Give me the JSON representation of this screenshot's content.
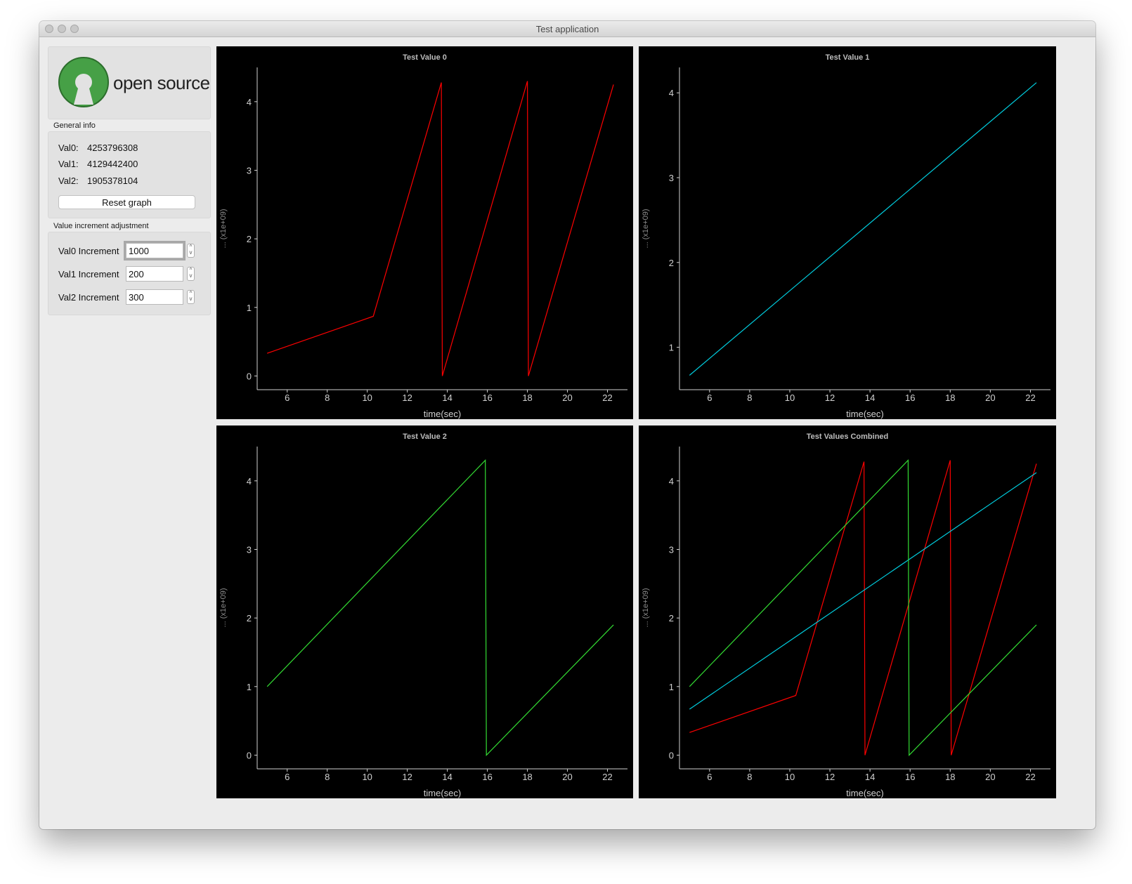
{
  "window": {
    "title": "Test application"
  },
  "sidebar": {
    "logo_text": "open source",
    "general_info": {
      "label": "General info",
      "rows": [
        {
          "label": "Val0:",
          "value": "4253796308"
        },
        {
          "label": "Val1:",
          "value": "4129442400"
        },
        {
          "label": "Val2:",
          "value": "1905378104"
        }
      ],
      "reset_label": "Reset graph"
    },
    "increment": {
      "label": "Value increment adjustment",
      "rows": [
        {
          "label": "Val0 Increment",
          "value": "1000"
        },
        {
          "label": "Val1 Increment",
          "value": "200"
        },
        {
          "label": "Val2 Increment",
          "value": "300"
        }
      ]
    }
  },
  "colors": {
    "val0": "#ff0000",
    "val1": "#00ccdd",
    "val2": "#33dd33",
    "logo_green": "#46a046"
  },
  "chart_data": [
    {
      "type": "line",
      "title": "Test Value 0",
      "xlabel": "time(sec)",
      "ylabel": "... (x1e+09)",
      "xlim": [
        4.5,
        23
      ],
      "ylim": [
        -0.2,
        4.5
      ],
      "xticks": [
        6,
        8,
        10,
        12,
        14,
        16,
        18,
        20,
        22
      ],
      "yticks": [
        0,
        1,
        2,
        3,
        4
      ],
      "series": [
        {
          "color": "#ff0000",
          "x": [
            5,
            10.3,
            13.7,
            13.75,
            18.0,
            18.05,
            22.3
          ],
          "y": [
            0.33,
            0.87,
            4.28,
            0.0,
            4.3,
            0.0,
            4.25
          ]
        }
      ]
    },
    {
      "type": "line",
      "title": "Test Value 1",
      "xlabel": "time(sec)",
      "ylabel": "... (x1e+09)",
      "xlim": [
        4.5,
        23
      ],
      "ylim": [
        0.5,
        4.3
      ],
      "xticks": [
        6,
        8,
        10,
        12,
        14,
        16,
        18,
        20,
        22
      ],
      "yticks": [
        1,
        2,
        3,
        4
      ],
      "series": [
        {
          "color": "#00ccdd",
          "x": [
            5,
            22.3
          ],
          "y": [
            0.67,
            4.12
          ]
        }
      ]
    },
    {
      "type": "line",
      "title": "Test Value 2",
      "xlabel": "time(sec)",
      "ylabel": "... (x1e+09)",
      "xlim": [
        4.5,
        23
      ],
      "ylim": [
        -0.2,
        4.5
      ],
      "xticks": [
        6,
        8,
        10,
        12,
        14,
        16,
        18,
        20,
        22
      ],
      "yticks": [
        0,
        1,
        2,
        3,
        4
      ],
      "series": [
        {
          "color": "#33dd33",
          "x": [
            5,
            15.9,
            15.95,
            22.3
          ],
          "y": [
            1.0,
            4.3,
            0.0,
            1.9
          ]
        }
      ]
    },
    {
      "type": "line",
      "title": "Test Values Combined",
      "xlabel": "time(sec)",
      "ylabel": "... (x1e+09)",
      "xlim": [
        4.5,
        23
      ],
      "ylim": [
        -0.2,
        4.5
      ],
      "xticks": [
        6,
        8,
        10,
        12,
        14,
        16,
        18,
        20,
        22
      ],
      "yticks": [
        0,
        1,
        2,
        3,
        4
      ],
      "series": [
        {
          "color": "#ff0000",
          "x": [
            5,
            10.3,
            13.7,
            13.75,
            18.0,
            18.05,
            22.3
          ],
          "y": [
            0.33,
            0.87,
            4.28,
            0.0,
            4.3,
            0.0,
            4.25
          ]
        },
        {
          "color": "#00ccdd",
          "x": [
            5,
            22.3
          ],
          "y": [
            0.67,
            4.12
          ]
        },
        {
          "color": "#33dd33",
          "x": [
            5,
            15.9,
            15.95,
            22.3
          ],
          "y": [
            1.0,
            4.3,
            0.0,
            1.9
          ]
        }
      ]
    }
  ]
}
